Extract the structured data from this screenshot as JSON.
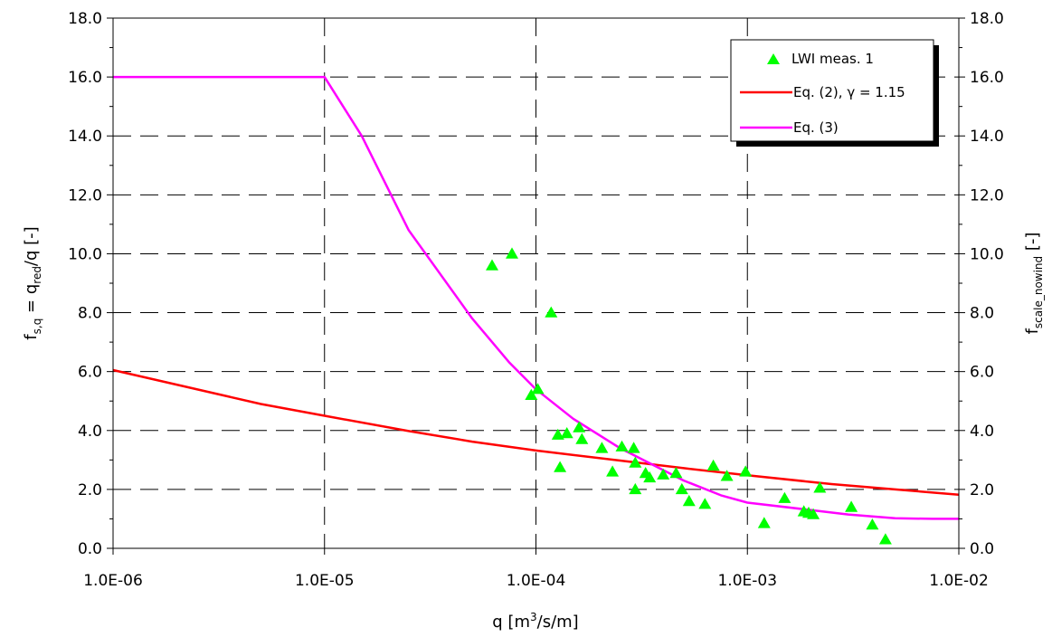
{
  "chart_data": {
    "type": "scatter",
    "x_scale": "log",
    "xlim": [
      1e-06,
      0.01
    ],
    "ylim": [
      0,
      18
    ],
    "y2lim": [
      0,
      18
    ],
    "grid": true,
    "legend_position": "top-right",
    "x_ticks": [
      "1.0E-06",
      "1.0E-05",
      "1.0E-04",
      "1.0E-03",
      "1.0E-02"
    ],
    "y_ticks": [
      "0.0",
      "2.0",
      "4.0",
      "6.0",
      "8.0",
      "10.0",
      "12.0",
      "14.0",
      "16.0",
      "18.0"
    ],
    "xlabel": "q [m³/s/m]",
    "ylabel": "fs,q = qred/q [-]",
    "y2label": "fscale_nowind [-]",
    "series": [
      {
        "name": "LWI meas. 1",
        "kind": "scatter",
        "marker": "triangle",
        "color": "#00ff00",
        "points": [
          [
            6.2e-05,
            9.6
          ],
          [
            7.7e-05,
            10.0
          ],
          [
            9.5e-05,
            5.2
          ],
          [
            0.000102,
            5.4
          ],
          [
            0.000118,
            8.0
          ],
          [
            0.000127,
            3.85
          ],
          [
            0.00013,
            2.75
          ],
          [
            0.00014,
            3.9
          ],
          [
            0.00016,
            4.1
          ],
          [
            0.000165,
            3.7
          ],
          [
            0.000205,
            3.4
          ],
          [
            0.00023,
            2.6
          ],
          [
            0.000255,
            3.45
          ],
          [
            0.00029,
            3.4
          ],
          [
            0.000295,
            2.9
          ],
          [
            0.000295,
            2.0
          ],
          [
            0.00033,
            2.55
          ],
          [
            0.000345,
            2.4
          ],
          [
            0.0004,
            2.5
          ],
          [
            0.00046,
            2.55
          ],
          [
            0.00049,
            2.0
          ],
          [
            0.00053,
            1.6
          ],
          [
            0.00063,
            1.5
          ],
          [
            0.00069,
            2.8
          ],
          [
            0.0008,
            2.45
          ],
          [
            0.00098,
            2.6
          ],
          [
            0.0012,
            0.85
          ],
          [
            0.0015,
            1.7
          ],
          [
            0.00185,
            1.25
          ],
          [
            0.00195,
            1.2
          ],
          [
            0.00205,
            1.15
          ],
          [
            0.0022,
            2.05
          ],
          [
            0.0031,
            1.4
          ],
          [
            0.0039,
            0.8
          ],
          [
            0.0045,
            0.3
          ]
        ]
      },
      {
        "name": "Eq. (2), γ = 1.15",
        "kind": "line",
        "color": "#ff0000",
        "points": [
          [
            1e-06,
            6.05
          ],
          [
            5e-06,
            4.9
          ],
          [
            1e-05,
            4.5
          ],
          [
            2.5e-05,
            3.98
          ],
          [
            5e-05,
            3.62
          ],
          [
            0.0001,
            3.32
          ],
          [
            0.00025,
            2.98
          ],
          [
            0.0005,
            2.72
          ],
          [
            0.001,
            2.48
          ],
          [
            0.0025,
            2.18
          ],
          [
            0.005,
            2.0
          ],
          [
            0.01,
            1.82
          ]
        ]
      },
      {
        "name": "Eq. (3)",
        "kind": "line",
        "color": "#ff00ff",
        "points": [
          [
            1e-06,
            16.0
          ],
          [
            1e-05,
            16.0
          ],
          [
            1.5e-05,
            14.0
          ],
          [
            2.5e-05,
            10.8
          ],
          [
            5e-05,
            7.8
          ],
          [
            7.5e-05,
            6.3
          ],
          [
            0.0001,
            5.4
          ],
          [
            0.00015,
            4.4
          ],
          [
            0.00025,
            3.4
          ],
          [
            0.0005,
            2.3
          ],
          [
            0.00075,
            1.8
          ],
          [
            0.001,
            1.55
          ],
          [
            0.002,
            1.3
          ],
          [
            0.003,
            1.15
          ],
          [
            0.005,
            1.02
          ],
          [
            0.0075,
            1.0
          ],
          [
            0.01,
            1.0
          ]
        ]
      }
    ]
  }
}
